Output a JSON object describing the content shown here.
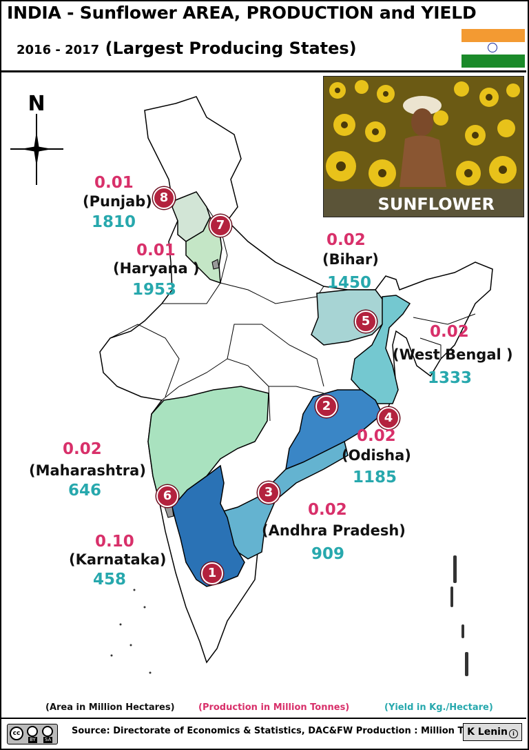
{
  "header": {
    "title": "INDIA - Sunflower  AREA, PRODUCTION and  YIELD",
    "subtitle_years": "2016 - 2017",
    "subtitle_text": "(Largest Producing States)"
  },
  "compass": {
    "label": "N"
  },
  "photo": {
    "label": "SUNFLOWER"
  },
  "states": [
    {
      "rank": "1",
      "name": "(Karnataka)",
      "production": "0.10",
      "yield": "458",
      "color": "#2a72b5"
    },
    {
      "rank": "2",
      "name": "(Odisha)",
      "production": "0.02",
      "yield": "1185",
      "color": "#3a86c6"
    },
    {
      "rank": "3",
      "name": "(Andhra Pradesh)",
      "production": "0.02",
      "yield": "909",
      "color": "#64b3d0"
    },
    {
      "rank": "4",
      "name": "(West Bengal )",
      "production": "0.02",
      "yield": "1333",
      "color": "#74c8d0"
    },
    {
      "rank": "5",
      "name": "(Bihar)",
      "production": "0.02",
      "yield": "1450",
      "color": "#a7d4d4"
    },
    {
      "rank": "6",
      "name": "(Maharashtra)",
      "production": "0.02",
      "yield": "646",
      "color": "#a9e2bf"
    },
    {
      "rank": "7",
      "name": "(Haryana )",
      "production": "0.01",
      "yield": "1953",
      "color": "#c4e6c6"
    },
    {
      "rank": "8",
      "name": "(Punjab)",
      "production": "0.01",
      "yield": "1810",
      "color": "#d2e5d6"
    }
  ],
  "legend": {
    "area": "(Area in Million Hectares)",
    "production": "(Production in Million Tonnes)",
    "yield": "(Yield in Kg./Hectare)"
  },
  "footer": {
    "source": "Source: Directorate of Economics & Statistics, DAC&FW  Production : Million Tonnes",
    "author": "K Lenin",
    "license_by": "BY",
    "license_sa": "SA"
  },
  "colors": {
    "production": "#d8306a",
    "yield": "#27a8ad",
    "badge": "#b3223e"
  }
}
